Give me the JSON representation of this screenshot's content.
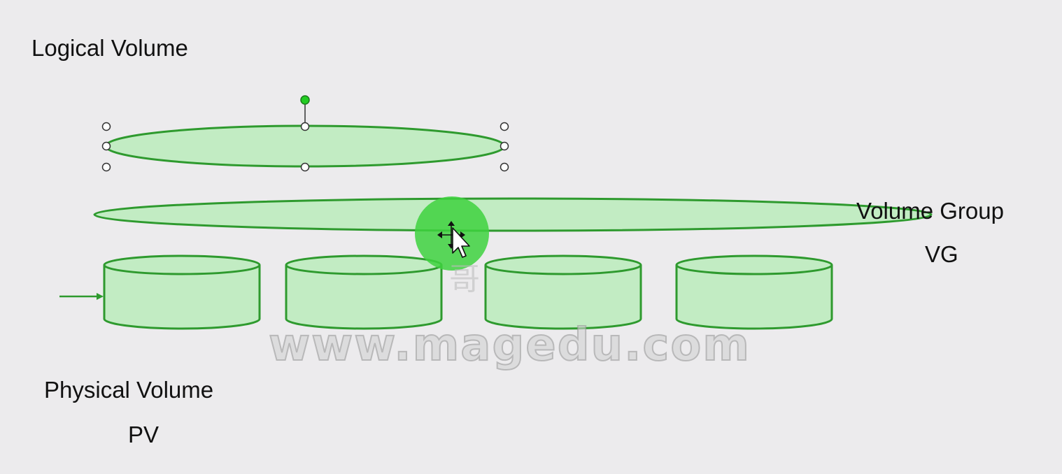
{
  "labels": {
    "logical_volume": "Logical Volume",
    "volume_group": "Volume Group",
    "vg": "VG",
    "physical_volume": "Physical Volume",
    "pv": "PV"
  },
  "watermark": {
    "text": "www.magedu.com",
    "glyph": "哥"
  },
  "colors": {
    "background": "#ecebed",
    "shape_fill": "#c2ecc3",
    "shape_stroke": "#2e9a2e",
    "handle_fill": "#ffffff",
    "handle_stroke": "#333333",
    "rotate_handle": "#22cc22",
    "cursor_highlight": "#3ed23e"
  },
  "icons": {
    "cursor": "move-cursor-icon",
    "rotate_handle": "rotate-handle-icon"
  },
  "physical_volume_count": 4
}
